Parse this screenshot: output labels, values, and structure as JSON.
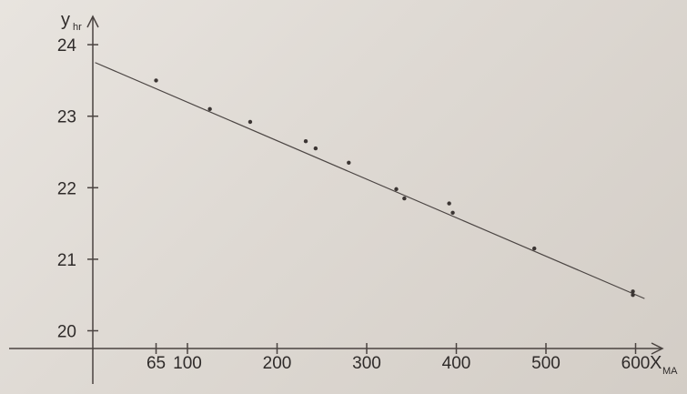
{
  "chart_data": {
    "type": "scatter",
    "title": "",
    "xlabel": "X",
    "xlabel_subscript": "MA",
    "ylabel": "y",
    "ylabel_subscript": "hr",
    "xlim": [
      -100,
      650
    ],
    "ylim": [
      19.8,
      24.5
    ],
    "x_ticks": [
      {
        "value": 65,
        "label": "65"
      },
      {
        "value": 100,
        "label": "100"
      },
      {
        "value": 200,
        "label": "200"
      },
      {
        "value": 300,
        "label": "300"
      },
      {
        "value": 400,
        "label": "400"
      },
      {
        "value": 500,
        "label": "500"
      },
      {
        "value": 600,
        "label": "600"
      }
    ],
    "y_ticks": [
      {
        "value": 20,
        "label": "20"
      },
      {
        "value": 21,
        "label": "21"
      },
      {
        "value": 22,
        "label": "22"
      },
      {
        "value": 23,
        "label": "23"
      },
      {
        "value": 24,
        "label": "24"
      }
    ],
    "points": [
      {
        "x": 65,
        "y": 23.5
      },
      {
        "x": 125,
        "y": 23.1
      },
      {
        "x": 170,
        "y": 22.92
      },
      {
        "x": 232,
        "y": 22.65
      },
      {
        "x": 243,
        "y": 22.55
      },
      {
        "x": 280,
        "y": 22.35
      },
      {
        "x": 333,
        "y": 21.98
      },
      {
        "x": 342,
        "y": 21.85
      },
      {
        "x": 392,
        "y": 21.78
      },
      {
        "x": 396,
        "y": 21.65
      },
      {
        "x": 487,
        "y": 21.15
      },
      {
        "x": 597,
        "y": 20.55
      },
      {
        "x": 597,
        "y": 20.5
      }
    ],
    "fit_line": {
      "start": {
        "x": -3,
        "y": 23.75
      },
      "end": {
        "x": 610,
        "y": 20.45
      }
    },
    "grid": false,
    "legend": "none"
  }
}
